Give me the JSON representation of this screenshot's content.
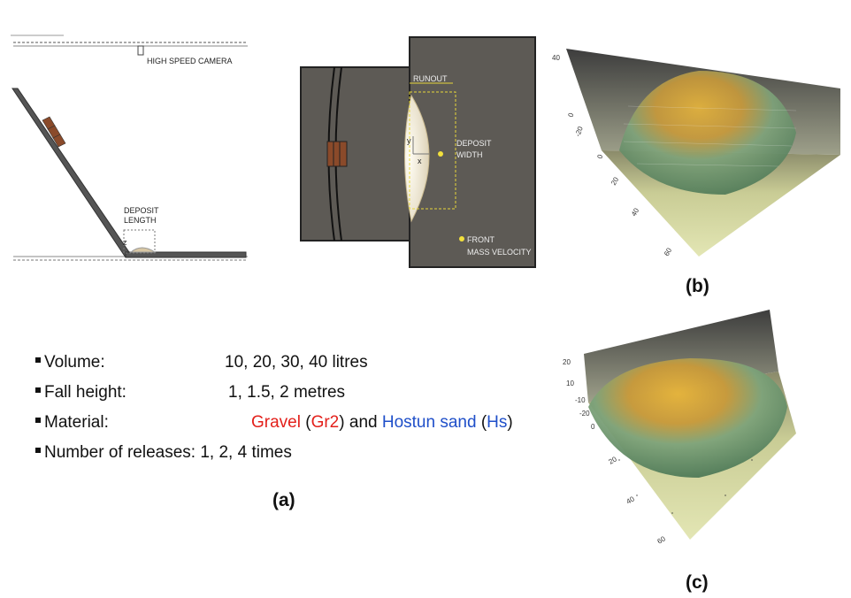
{
  "side_view": {
    "camera": "HIGH SPEED CAMERA",
    "deposit_length": [
      "DEPOSIT",
      "LENGTH"
    ],
    "z_axis": "z"
  },
  "top_view": {
    "runout": "RUNOUT",
    "deposit_width": [
      "DEPOSIT",
      "WIDTH"
    ],
    "y_axis": "y",
    "x_axis": "x",
    "front_velocity": [
      "FRONT",
      "MASS VELOCITY"
    ]
  },
  "parameters": [
    {
      "name": "Volume:",
      "value": "10, 20, 30, 40 litres"
    },
    {
      "name": "Fall height:",
      "value": "1, 1.5, 2 metres"
    },
    {
      "name": "Material:",
      "parts": [
        "Gravel",
        "(",
        "Gr2",
        ") and",
        "Hostun sand",
        "(",
        "Hs",
        ")"
      ]
    },
    {
      "name": "Number of releases: 1, 2, 4 times"
    }
  ],
  "panel_labels": {
    "a": "(a)",
    "b": "(b)",
    "c": "(c)"
  },
  "plot_b": {
    "vertical_ticks": [
      "40",
      "0",
      "-20"
    ],
    "depth_ticks": [
      "0",
      "20",
      "40",
      "60"
    ]
  },
  "plot_c": {
    "vertical_ticks": [
      "20",
      "10",
      "-10",
      "-20"
    ],
    "depth_ticks": [
      "0",
      "20",
      "40",
      "60"
    ]
  }
}
